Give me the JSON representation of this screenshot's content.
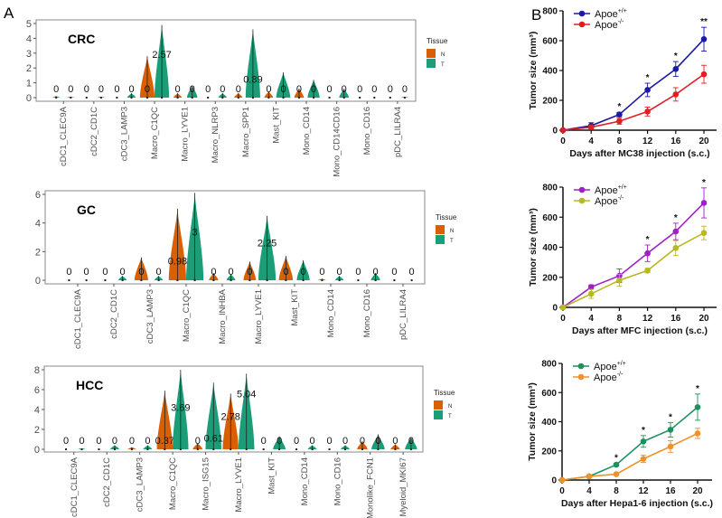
{
  "panel_labels": {
    "a": "A",
    "b": "B"
  },
  "violin_legend": {
    "title": "Tissue",
    "levels": [
      "N",
      "T"
    ],
    "colors": {
      "N": "#D95F02",
      "T": "#1B9E77"
    }
  },
  "chart_data": [
    {
      "type": "violin",
      "title": "CRC",
      "ylim": [
        0,
        5
      ],
      "yticks": [
        0,
        1,
        2,
        3,
        4,
        5
      ],
      "grid": false,
      "categories": [
        "cDC1_CLEC9A",
        "cDC2_CD1C",
        "cDC3_LAMP3",
        "Macro_C1QC",
        "Macro_LYVE1",
        "Macro_NLRP3",
        "Macro_SPP1",
        "Mast_KIT",
        "Mono_CD14",
        "Mono_CD14CD16",
        "Mono_CD16",
        "pDC_LILRA4"
      ],
      "series": [
        {
          "name": "N",
          "median_labels": [
            "0",
            "0",
            "0",
            "0",
            "0",
            "0",
            "0",
            "0",
            "0",
            "0",
            "0",
            "0"
          ],
          "max": [
            0.1,
            0,
            0,
            2.8,
            0.3,
            0,
            0.3,
            0.4,
            0.6,
            0,
            0,
            0
          ]
        },
        {
          "name": "T",
          "median_labels": [
            "0",
            "0",
            "0",
            "2.57",
            "0",
            "0",
            "0.89",
            "0",
            "0",
            "0",
            "0",
            "0"
          ],
          "max": [
            0.05,
            0.05,
            0.3,
            4.9,
            0.8,
            0.3,
            4.6,
            1.7,
            1.2,
            0.6,
            0,
            0.05
          ]
        }
      ]
    },
    {
      "type": "violin",
      "title": "GC",
      "ylim": [
        0,
        6
      ],
      "yticks": [
        0,
        2,
        4,
        6
      ],
      "grid": false,
      "categories": [
        "cDC1_CLEC9A",
        "cDC2_CD1C",
        "cDC3_LAMP3",
        "Macro_C1QC",
        "Macro_INHBA",
        "Macro_LYVE1",
        "Mast_KIT",
        "Mono_CD14",
        "Mono_CD16",
        "pDC_LILRA4"
      ],
      "series": [
        {
          "name": "N",
          "median_labels": [
            "0",
            "0",
            "0",
            "0.98",
            "0",
            "0",
            "0",
            "0",
            "0",
            "0"
          ],
          "max": [
            0,
            0,
            1.6,
            5,
            0.5,
            1.3,
            1.7,
            0.1,
            0,
            0
          ]
        },
        {
          "name": "T",
          "median_labels": [
            "0",
            "0",
            "0",
            "3",
            "0",
            "2.25",
            "0",
            "0",
            "0",
            "0"
          ],
          "max": [
            0,
            0.3,
            0.3,
            6.1,
            0.4,
            4.5,
            1.4,
            0.3,
            0.5,
            0
          ]
        }
      ]
    },
    {
      "type": "violin",
      "title": "HCC",
      "ylim": [
        0,
        8
      ],
      "yticks": [
        0,
        2,
        4,
        6,
        8
      ],
      "grid": false,
      "categories": [
        "cDC1_CLEC9A",
        "cDC2_CD1C",
        "cDC3_LAMP3",
        "Macro_C1QC",
        "Macro_ISG15",
        "Macro_LYVE1",
        "Mast_KIT",
        "Mono_CD14",
        "Mono_CD16",
        "Monolike_FCN1",
        "Myeloid_MKI67"
      ],
      "series": [
        {
          "name": "N",
          "median_labels": [
            "0",
            "0",
            "0",
            "0.37",
            "0",
            "2.78",
            "0",
            "0",
            "0",
            "0",
            "0"
          ],
          "max": [
            0,
            0,
            0.2,
            5.9,
            0.6,
            5.6,
            0,
            0,
            0,
            0.8,
            0.5
          ]
        },
        {
          "name": "T",
          "median_labels": [
            "0",
            "0",
            "0",
            "3.69",
            "0.61",
            "5.04",
            "0",
            "0",
            "0",
            "0",
            "0"
          ],
          "max": [
            0.1,
            0.4,
            0.4,
            8,
            6.7,
            7.6,
            1.3,
            0.4,
            0.4,
            1.5,
            1.2
          ]
        }
      ]
    },
    {
      "type": "line",
      "xlabel": "Days after MC38 injection (s.c.)",
      "ylabel": "Tumor size (mm³)",
      "xlim": [
        0,
        20
      ],
      "ylim": [
        0,
        800
      ],
      "x": [
        0,
        4,
        8,
        12,
        16,
        20
      ],
      "yticks": [
        0,
        200,
        400,
        600,
        800
      ],
      "legend": "top-left",
      "series": [
        {
          "name": "Apoe",
          "sup": "+/+",
          "color": "#1A1AA6",
          "values": [
            0,
            30,
            105,
            270,
            410,
            610
          ],
          "error": [
            0,
            20,
            15,
            45,
            50,
            80
          ]
        },
        {
          "name": "Apoe",
          "sup": "-/-",
          "color": "#E02020",
          "values": [
            0,
            20,
            60,
            125,
            240,
            375
          ],
          "error": [
            0,
            10,
            20,
            30,
            45,
            60
          ]
        }
      ],
      "significance": [
        "",
        "",
        "*",
        "*",
        "*",
        "**"
      ]
    },
    {
      "type": "line",
      "xlabel": "Days after MFC injection (s.c.)",
      "ylabel": "Tumor size (mm³)",
      "xlim": [
        0,
        20
      ],
      "ylim": [
        0,
        800
      ],
      "x": [
        0,
        4,
        8,
        12,
        16,
        20
      ],
      "yticks": [
        0,
        200,
        400,
        600,
        800
      ],
      "legend": "top-left",
      "series": [
        {
          "name": "Apoe",
          "sup": "+/+",
          "color": "#A020C8",
          "values": [
            0,
            135,
            210,
            360,
            505,
            695
          ],
          "error": [
            0,
            15,
            45,
            55,
            55,
            100
          ]
        },
        {
          "name": "Apoe",
          "sup": "-/-",
          "color": "#B8B820",
          "values": [
            0,
            90,
            180,
            245,
            395,
            495
          ],
          "error": [
            0,
            30,
            40,
            15,
            50,
            45
          ]
        }
      ],
      "significance": [
        "",
        "",
        "",
        "*",
        "*",
        "*"
      ]
    },
    {
      "type": "line",
      "xlabel": "Days after Hepa1-6 injection (s.c.)",
      "ylabel": "Tumor size (mm³)",
      "xlim": [
        0,
        20
      ],
      "ylim": [
        0,
        800
      ],
      "x": [
        0,
        4,
        8,
        12,
        16,
        20
      ],
      "yticks": [
        0,
        200,
        400,
        600,
        800
      ],
      "legend": "top-left",
      "series": [
        {
          "name": "Apoe",
          "sup": "+/+",
          "color": "#1E9060",
          "values": [
            0,
            25,
            105,
            265,
            345,
            500
          ],
          "error": [
            0,
            5,
            10,
            40,
            50,
            90
          ]
        },
        {
          "name": "Apoe",
          "sup": "-/-",
          "color": "#F0922A",
          "values": [
            0,
            25,
            40,
            145,
            230,
            320
          ],
          "error": [
            0,
            5,
            5,
            25,
            40,
            35
          ]
        }
      ],
      "significance": [
        "",
        "",
        "*",
        "*",
        "*",
        "*"
      ]
    }
  ]
}
